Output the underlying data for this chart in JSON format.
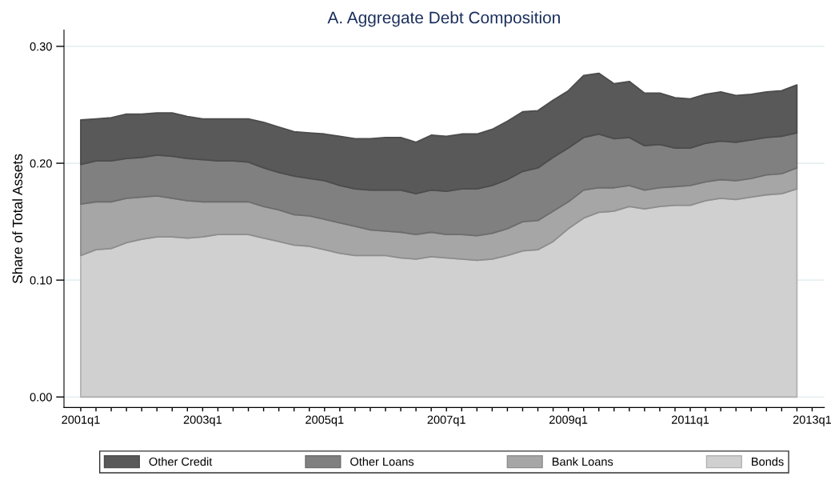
{
  "chart_data": {
    "type": "area",
    "title": "A. Aggregate Debt Composition",
    "ylabel": "Share of Total Assets",
    "stacked": true,
    "categories": [
      "2001q1",
      null,
      null,
      null,
      null,
      null,
      null,
      null,
      "2003q1",
      null,
      null,
      null,
      null,
      null,
      null,
      null,
      "2005q1",
      null,
      null,
      null,
      null,
      null,
      null,
      null,
      "2007q1",
      null,
      null,
      null,
      null,
      null,
      null,
      null,
      "2009q1",
      null,
      null,
      null,
      null,
      null,
      null,
      null,
      "2011q1",
      null,
      null,
      null,
      null,
      null,
      null,
      null,
      "2013q1"
    ],
    "series": [
      {
        "name": "Bonds",
        "color": "#d0d0d0",
        "values": [
          0.121,
          0.126,
          0.127,
          0.132,
          0.135,
          0.137,
          0.137,
          0.136,
          0.137,
          0.139,
          0.139,
          0.139,
          0.136,
          0.133,
          0.13,
          0.129,
          0.126,
          0.123,
          0.121,
          0.121,
          0.121,
          0.119,
          0.118,
          0.12,
          0.119,
          0.118,
          0.117,
          0.118,
          0.121,
          0.125,
          0.126,
          0.133,
          0.144,
          0.153,
          0.158,
          0.159,
          0.163,
          0.161,
          0.163,
          0.164,
          0.164,
          0.168,
          0.17,
          0.169,
          0.171,
          0.173,
          0.174,
          0.178,
          null
        ]
      },
      {
        "name": "Bank Loans",
        "color": "#a6a6a6",
        "values": [
          0.044,
          0.041,
          0.04,
          0.038,
          0.036,
          0.035,
          0.033,
          0.032,
          0.03,
          0.028,
          0.028,
          0.028,
          0.027,
          0.027,
          0.026,
          0.026,
          0.026,
          0.026,
          0.025,
          0.022,
          0.021,
          0.022,
          0.021,
          0.021,
          0.02,
          0.021,
          0.021,
          0.022,
          0.023,
          0.025,
          0.025,
          0.026,
          0.023,
          0.024,
          0.021,
          0.02,
          0.018,
          0.016,
          0.016,
          0.016,
          0.017,
          0.016,
          0.016,
          0.016,
          0.016,
          0.017,
          0.017,
          0.018,
          null
        ]
      },
      {
        "name": "Other Loans",
        "color": "#808080",
        "values": [
          0.034,
          0.035,
          0.035,
          0.034,
          0.034,
          0.035,
          0.036,
          0.036,
          0.036,
          0.035,
          0.035,
          0.034,
          0.033,
          0.032,
          0.033,
          0.032,
          0.033,
          0.032,
          0.032,
          0.034,
          0.035,
          0.036,
          0.035,
          0.036,
          0.037,
          0.039,
          0.04,
          0.041,
          0.042,
          0.043,
          0.045,
          0.046,
          0.046,
          0.045,
          0.046,
          0.042,
          0.041,
          0.038,
          0.037,
          0.033,
          0.032,
          0.033,
          0.033,
          0.033,
          0.033,
          0.032,
          0.032,
          0.03,
          null
        ]
      },
      {
        "name": "Other Credit",
        "color": "#595959",
        "values": [
          0.038,
          0.036,
          0.037,
          0.038,
          0.037,
          0.036,
          0.037,
          0.036,
          0.035,
          0.036,
          0.036,
          0.037,
          0.039,
          0.039,
          0.038,
          0.039,
          0.04,
          0.042,
          0.043,
          0.044,
          0.045,
          0.045,
          0.044,
          0.047,
          0.047,
          0.047,
          0.047,
          0.048,
          0.05,
          0.051,
          0.049,
          0.049,
          0.049,
          0.053,
          0.052,
          0.047,
          0.048,
          0.045,
          0.044,
          0.043,
          0.042,
          0.042,
          0.042,
          0.04,
          0.039,
          0.039,
          0.039,
          0.041,
          null
        ]
      }
    ],
    "ylim": [
      -0.009,
      0.314
    ],
    "yticks": [
      {
        "value": 0,
        "label": "0.00"
      },
      {
        "value": 0.1,
        "label": "0.10"
      },
      {
        "value": 0.2,
        "label": "0.20"
      },
      {
        "value": 0.3,
        "label": "0.30"
      }
    ],
    "grid": "y",
    "legend": "bottom"
  }
}
